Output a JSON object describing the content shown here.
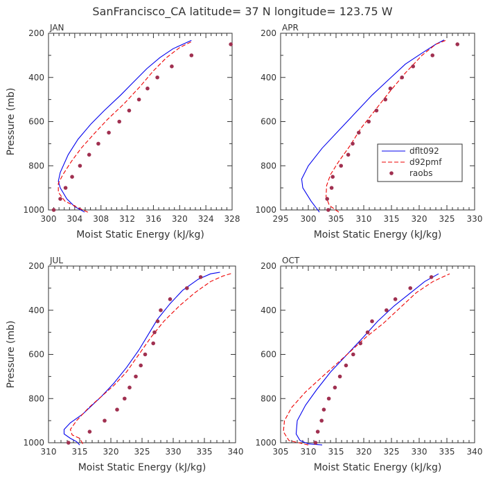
{
  "title": "SanFrancisco_CA  latitude= 37 N longitude= 123.75 W",
  "colors": {
    "dflt092": "#0000ee",
    "d92pmf": "#ee0000",
    "raobs": "#a03050",
    "axis": "#333333"
  },
  "legend": {
    "placement": "inside APR panel, right",
    "entries": [
      "dflt092",
      "d92pmf",
      "raobs"
    ]
  },
  "chart_data": [
    {
      "type": "line",
      "panel_label": "JAN",
      "xlabel": "Moist Static Energy (kJ/kg)",
      "ylabel": "Pressure (mb)",
      "xlim": [
        300,
        328
      ],
      "xticks": [
        300,
        304,
        308,
        312,
        316,
        320,
        324,
        328
      ],
      "ylim": [
        1000,
        200
      ],
      "yticks": [
        200,
        400,
        600,
        800,
        1000
      ],
      "series": [
        {
          "name": "dflt092",
          "style": "solid",
          "points": [
            [
              305.5,
              1010
            ],
            [
              304.0,
              985
            ],
            [
              302.8,
              950
            ],
            [
              301.8,
              900
            ],
            [
              301.5,
              870
            ],
            [
              301.8,
              830
            ],
            [
              303.0,
              750
            ],
            [
              304.5,
              680
            ],
            [
              306.5,
              610
            ],
            [
              308.5,
              550
            ],
            [
              311.0,
              480
            ],
            [
              313.0,
              420
            ],
            [
              315.0,
              360
            ],
            [
              317.0,
              310
            ],
            [
              319.0,
              270
            ],
            [
              321.8,
              232
            ]
          ]
        },
        {
          "name": "d92pmf",
          "style": "dashed",
          "points": [
            [
              306.0,
              1010
            ],
            [
              304.5,
              990
            ],
            [
              302.5,
              960
            ],
            [
              301.5,
              920
            ],
            [
              301.5,
              880
            ],
            [
              302.2,
              840
            ],
            [
              303.5,
              780
            ],
            [
              305.0,
              720
            ],
            [
              306.8,
              660
            ],
            [
              309.0,
              590
            ],
            [
              311.5,
              520
            ],
            [
              314.0,
              440
            ],
            [
              316.0,
              370
            ],
            [
              318.0,
              310
            ],
            [
              320.0,
              265
            ],
            [
              322.0,
              235
            ]
          ]
        },
        {
          "name": "raobs",
          "style": "points",
          "points": [
            [
              300.8,
              1000
            ],
            [
              301.8,
              950
            ],
            [
              302.6,
              900
            ],
            [
              303.6,
              850
            ],
            [
              304.8,
              800
            ],
            [
              306.2,
              750
            ],
            [
              307.6,
              700
            ],
            [
              309.2,
              650
            ],
            [
              310.8,
              600
            ],
            [
              312.3,
              550
            ],
            [
              313.8,
              500
            ],
            [
              315.1,
              450
            ],
            [
              316.6,
              400
            ],
            [
              318.8,
              350
            ],
            [
              321.8,
              300
            ],
            [
              327.8,
              250
            ]
          ]
        }
      ]
    },
    {
      "type": "line",
      "panel_label": "APR",
      "xlabel": "Moist Static Energy (kJ/kg)",
      "ylabel": "",
      "xlim": [
        295,
        330
      ],
      "xticks": [
        295,
        300,
        305,
        310,
        315,
        320,
        325,
        330
      ],
      "ylim": [
        1000,
        200
      ],
      "yticks": [
        200,
        400,
        600,
        800,
        1000
      ],
      "series": [
        {
          "name": "dflt092",
          "style": "solid",
          "points": [
            [
              302.0,
              1010
            ],
            [
              300.5,
              960
            ],
            [
              299.0,
              900
            ],
            [
              298.8,
              860
            ],
            [
              300.0,
              800
            ],
            [
              302.5,
              720
            ],
            [
              305.5,
              640
            ],
            [
              308.5,
              560
            ],
            [
              311.5,
              480
            ],
            [
              314.5,
              410
            ],
            [
              317.5,
              340
            ],
            [
              320.5,
              290
            ],
            [
              323.0,
              250
            ],
            [
              324.5,
              230
            ]
          ]
        },
        {
          "name": "d92pmf",
          "style": "dashed",
          "points": [
            [
              305.5,
              1010
            ],
            [
              303.8,
              980
            ],
            [
              303.2,
              940
            ],
            [
              303.3,
              890
            ],
            [
              304.0,
              840
            ],
            [
              305.5,
              780
            ],
            [
              307.5,
              710
            ],
            [
              309.5,
              630
            ],
            [
              312.0,
              550
            ],
            [
              314.5,
              470
            ],
            [
              317.5,
              380
            ],
            [
              320.5,
              300
            ],
            [
              323.0,
              250
            ],
            [
              325.0,
              230
            ]
          ]
        },
        {
          "name": "raobs",
          "style": "points",
          "points": [
            [
              303.6,
              1000
            ],
            [
              303.4,
              950
            ],
            [
              304.2,
              900
            ],
            [
              304.4,
              850
            ],
            [
              305.9,
              800
            ],
            [
              307.2,
              750
            ],
            [
              308.0,
              700
            ],
            [
              309.1,
              650
            ],
            [
              310.9,
              600
            ],
            [
              312.3,
              550
            ],
            [
              313.9,
              500
            ],
            [
              314.8,
              450
            ],
            [
              316.9,
              400
            ],
            [
              318.9,
              350
            ],
            [
              322.4,
              300
            ],
            [
              326.9,
              250
            ]
          ]
        }
      ]
    },
    {
      "type": "line",
      "panel_label": "JUL",
      "xlabel": "Moist Static Energy (kJ/kg)",
      "ylabel": "Pressure (mb)",
      "xlim": [
        310,
        340
      ],
      "xticks": [
        310,
        315,
        320,
        325,
        330,
        335,
        340
      ],
      "ylim": [
        1000,
        200
      ],
      "yticks": [
        200,
        400,
        600,
        800,
        1000
      ],
      "series": [
        {
          "name": "dflt092",
          "style": "solid",
          "points": [
            [
              315.0,
              1010
            ],
            [
              314.5,
              995
            ],
            [
              313.5,
              980
            ],
            [
              312.5,
              960
            ],
            [
              312.5,
              940
            ],
            [
              313.5,
              910
            ],
            [
              315.5,
              870
            ],
            [
              317.0,
              830
            ],
            [
              318.5,
              790
            ],
            [
              320.5,
              730
            ],
            [
              322.5,
              660
            ],
            [
              324.5,
              580
            ],
            [
              326.0,
              510
            ],
            [
              327.5,
              440
            ],
            [
              329.5,
              370
            ],
            [
              331.5,
              310
            ],
            [
              334.0,
              260
            ],
            [
              336.0,
              235
            ],
            [
              337.5,
              228
            ]
          ]
        },
        {
          "name": "d92pmf",
          "style": "dashed",
          "points": [
            [
              315.5,
              1005
            ],
            [
              315.0,
              980
            ],
            [
              313.8,
              965
            ],
            [
              313.5,
              940
            ],
            [
              314.5,
              900
            ],
            [
              316.5,
              840
            ],
            [
              318.5,
              790
            ],
            [
              320.5,
              740
            ],
            [
              322.5,
              680
            ],
            [
              324.5,
              600
            ],
            [
              326.5,
              520
            ],
            [
              328.5,
              450
            ],
            [
              331.0,
              380
            ],
            [
              333.5,
              320
            ],
            [
              336.0,
              270
            ],
            [
              338.0,
              245
            ],
            [
              339.5,
              232
            ]
          ]
        },
        {
          "name": "raobs",
          "style": "points",
          "points": [
            [
              313.2,
              1000
            ],
            [
              316.6,
              950
            ],
            [
              319.0,
              900
            ],
            [
              321.0,
              850
            ],
            [
              322.2,
              800
            ],
            [
              323.0,
              750
            ],
            [
              324.0,
              700
            ],
            [
              324.8,
              650
            ],
            [
              325.5,
              600
            ],
            [
              326.8,
              550
            ],
            [
              327.0,
              500
            ],
            [
              327.5,
              450
            ],
            [
              328.0,
              400
            ],
            [
              329.5,
              350
            ],
            [
              332.2,
              300
            ],
            [
              334.4,
              250
            ]
          ]
        }
      ]
    },
    {
      "type": "line",
      "panel_label": "OCT",
      "xlabel": "Moist Static Energy (kJ/kg)",
      "ylabel": "",
      "xlim": [
        305,
        340
      ],
      "xticks": [
        305,
        310,
        315,
        320,
        325,
        330,
        335,
        340
      ],
      "ylim": [
        1000,
        200
      ],
      "yticks": [
        200,
        400,
        600,
        800,
        1000
      ],
      "series": [
        {
          "name": "dflt092",
          "style": "solid",
          "points": [
            [
              312.5,
              1010
            ],
            [
              310.0,
              1005
            ],
            [
              308.5,
              990
            ],
            [
              307.8,
              960
            ],
            [
              308.0,
              900
            ],
            [
              309.5,
              830
            ],
            [
              311.5,
              760
            ],
            [
              314.0,
              680
            ],
            [
              317.0,
              600
            ],
            [
              320.0,
              520
            ],
            [
              322.5,
              450
            ],
            [
              325.5,
              380
            ],
            [
              328.5,
              320
            ],
            [
              331.0,
              270
            ],
            [
              333.5,
              235
            ]
          ]
        },
        {
          "name": "d92pmf",
          "style": "dashed",
          "points": [
            [
              310.0,
              1010
            ],
            [
              306.5,
              990
            ],
            [
              305.5,
              950
            ],
            [
              305.7,
              900
            ],
            [
              307.0,
              840
            ],
            [
              309.5,
              770
            ],
            [
              313.0,
              690
            ],
            [
              317.0,
              600
            ],
            [
              320.5,
              520
            ],
            [
              323.5,
              460
            ],
            [
              326.5,
              390
            ],
            [
              329.5,
              320
            ],
            [
              332.5,
              270
            ],
            [
              335.5,
              235
            ]
          ]
        },
        {
          "name": "raobs",
          "style": "points",
          "points": [
            [
              311.3,
              1000
            ],
            [
              311.7,
              950
            ],
            [
              312.4,
              900
            ],
            [
              312.8,
              850
            ],
            [
              313.7,
              800
            ],
            [
              314.8,
              750
            ],
            [
              315.7,
              700
            ],
            [
              316.8,
              650
            ],
            [
              318.1,
              600
            ],
            [
              319.4,
              550
            ],
            [
              320.7,
              500
            ],
            [
              321.5,
              450
            ],
            [
              324.1,
              400
            ],
            [
              325.7,
              350
            ],
            [
              328.4,
              300
            ],
            [
              332.2,
              250
            ]
          ]
        }
      ]
    }
  ]
}
